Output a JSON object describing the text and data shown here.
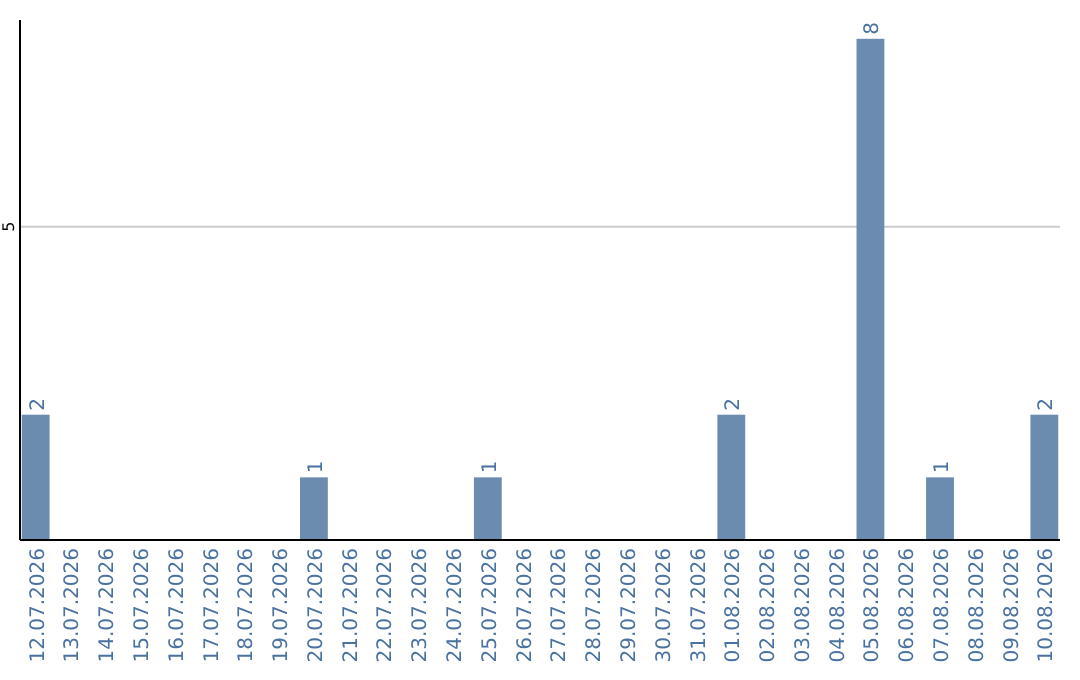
{
  "chart_data": {
    "type": "bar",
    "categories": [
      "12.07.2026",
      "13.07.2026",
      "14.07.2026",
      "15.07.2026",
      "16.07.2026",
      "17.07.2026",
      "18.07.2026",
      "19.07.2026",
      "20.07.2026",
      "21.07.2026",
      "22.07.2026",
      "23.07.2026",
      "24.07.2026",
      "25.07.2026",
      "26.07.2026",
      "27.07.2026",
      "28.07.2026",
      "29.07.2026",
      "30.07.2026",
      "31.07.2026",
      "01.08.2026",
      "02.08.2026",
      "03.08.2026",
      "04.08.2026",
      "05.08.2026",
      "06.08.2026",
      "07.08.2026",
      "08.08.2026",
      "09.08.2026",
      "10.08.2026"
    ],
    "values": [
      2,
      0,
      0,
      0,
      0,
      0,
      0,
      0,
      1,
      0,
      0,
      0,
      0,
      1,
      0,
      0,
      0,
      0,
      0,
      0,
      2,
      0,
      0,
      0,
      8,
      0,
      1,
      0,
      0,
      2
    ],
    "value_labels": [
      "2",
      null,
      null,
      null,
      null,
      null,
      null,
      null,
      "1",
      null,
      null,
      null,
      null,
      "1",
      null,
      null,
      null,
      null,
      null,
      null,
      "2",
      null,
      null,
      null,
      "8",
      null,
      "1",
      null,
      null,
      "2"
    ],
    "color": "#6b8cae",
    "ylim": [
      0,
      8.3
    ],
    "yticks": [
      5
    ],
    "grid": "y"
  }
}
